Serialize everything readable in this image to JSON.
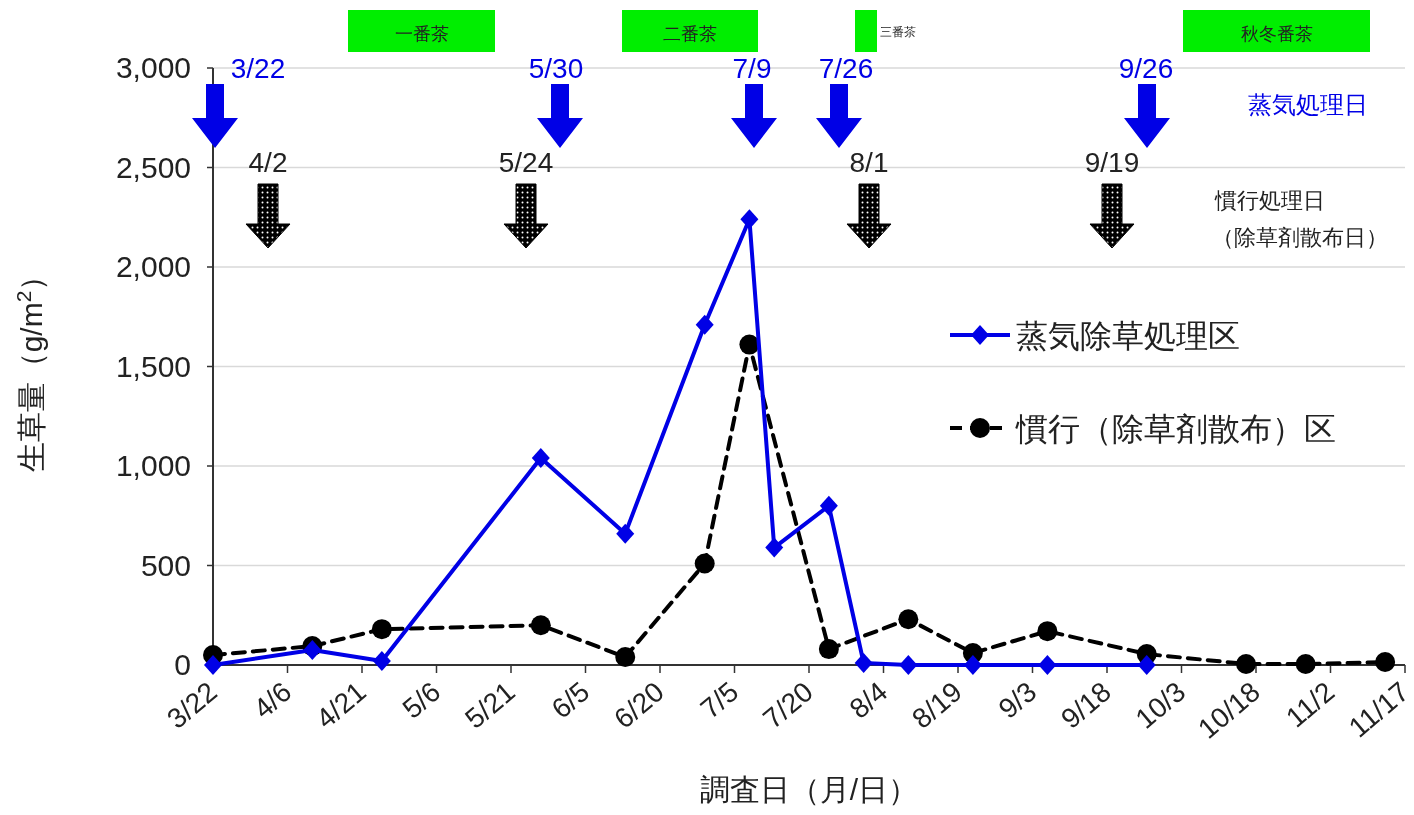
{
  "chart_data": {
    "type": "line",
    "xlabel": "調査日（月/日）",
    "ylabel": "生草量（g/m$^{2}$）",
    "xlim": [
      "--03-22",
      "--11-17"
    ],
    "xticks": [
      {
        "value": "--03-22",
        "label": "3/22"
      },
      {
        "value": "--04-06",
        "label": "4/6"
      },
      {
        "value": "--04-21",
        "label": "4/21"
      },
      {
        "value": "--05-06",
        "label": "5/6"
      },
      {
        "value": "--05-21",
        "label": "5/21"
      },
      {
        "value": "--06-05",
        "label": "6/5"
      },
      {
        "value": "--06-20",
        "label": "6/20"
      },
      {
        "value": "--07-05",
        "label": "7/5"
      },
      {
        "value": "--07-20",
        "label": "7/20"
      },
      {
        "value": "--08-04",
        "label": "8/4"
      },
      {
        "value": "--08-19",
        "label": "8/19"
      },
      {
        "value": "--09-03",
        "label": "9/3"
      },
      {
        "value": "--09-18",
        "label": "9/18"
      },
      {
        "value": "--10-03",
        "label": "10/3"
      },
      {
        "value": "--10-18",
        "label": "10/18"
      },
      {
        "value": "--11-02",
        "label": "11/2"
      },
      {
        "value": "--11-17",
        "label": "11/17"
      }
    ],
    "ylim": [
      0,
      3000
    ],
    "yticks": [
      0,
      500,
      {
        "value": 1000,
        "label": "1,000"
      },
      {
        "value": 1500,
        "label": "1,500"
      },
      {
        "value": 2000,
        "label": "2,000"
      },
      {
        "value": 2500,
        "label": "2,500"
      },
      {
        "value": 3000,
        "label": "3,000"
      }
    ],
    "grid": "y",
    "legend": "right",
    "series": [
      {
        "name": "蒸気除草処理区",
        "color": "#0000e6",
        "marker": "diamond",
        "line_style": "solid",
        "x": [
          "--03-22",
          "--04-11",
          "--04-25",
          "--05-27",
          "--06-13",
          "--06-29",
          "--07-08",
          "--07-13",
          "--07-24",
          "--07-31",
          "--08-09",
          "--08-22",
          "--09-06",
          "--09-26"
        ],
        "values": [
          0,
          75,
          20,
          1040,
          660,
          1710,
          2240,
          590,
          800,
          10,
          0,
          0,
          0,
          0
        ]
      },
      {
        "name": "慣行（除草剤散布）区",
        "color": "#000000",
        "marker": "circle",
        "line_style": "dashed",
        "x": [
          "--03-22",
          "--04-11",
          "--04-25",
          "--05-27",
          "--06-13",
          "--06-29",
          "--07-08",
          "--07-24",
          "--08-09",
          "--08-22",
          "--09-06",
          "--09-26",
          "--10-16",
          "--10-28",
          "--11-13"
        ],
        "values": [
          50,
          95,
          180,
          200,
          40,
          510,
          1610,
          80,
          230,
          60,
          170,
          55,
          5,
          5,
          15
        ]
      }
    ],
    "annotations": [
      "一番茶",
      "二番茶",
      "三番茶",
      "秋冬番茶",
      "3/22",
      "5/30",
      "7/9",
      "7/26",
      "9/26",
      "蒸気処理日",
      "4/2",
      "5/24",
      "8/1",
      "9/19",
      "慣行処理日",
      "（除草剤散布日）"
    ]
  }
}
